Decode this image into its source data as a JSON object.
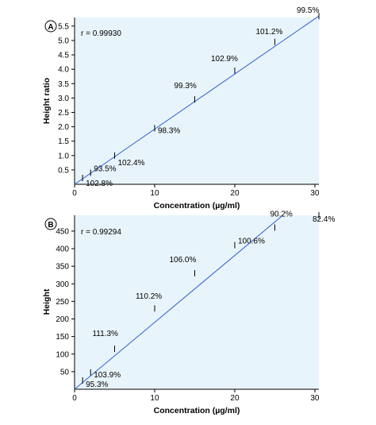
{
  "chart_data": [
    {
      "type": "scatter",
      "panel_label": "A",
      "annotation": "r = 0.99930",
      "xlabel": "Concentration (µg/ml)",
      "ylabel": "Height ratio",
      "xlim": [
        0,
        30.5
      ],
      "ylim": [
        0,
        5.8
      ],
      "xticks": [
        0,
        10,
        20,
        30
      ],
      "yticks": [
        0.5,
        1.0,
        1.5,
        2.0,
        2.5,
        3.0,
        3.5,
        4.0,
        4.5,
        5.0,
        5.5
      ],
      "ytick_labels": [
        "0.5",
        "1.0",
        "1.5",
        "2.0",
        "2.5",
        "3.0",
        "3.5",
        "4.0",
        "4.5",
        "5.0",
        "5.5"
      ],
      "fit_line": {
        "x": [
          0,
          30.5
        ],
        "y": [
          0,
          5.85
        ]
      },
      "x": [
        1.0,
        2.0,
        5.0,
        10.0,
        15.0,
        20.0,
        25.0,
        30.5
      ],
      "y": [
        0.22,
        0.4,
        1.0,
        1.95,
        2.95,
        3.95,
        4.95,
        5.85
      ],
      "point_labels": [
        "102.8%",
        "93.5%",
        "102.4%",
        "98.3%",
        "99.3%",
        "102.9%",
        "101.2%",
        "99.5%"
      ],
      "grid": false
    },
    {
      "type": "scatter",
      "panel_label": "B",
      "annotation": "r = 0.99294",
      "xlabel": "Concentration (µg/ml)",
      "ylabel": "Height",
      "xlim": [
        0,
        30.5
      ],
      "ylim": [
        0,
        495
      ],
      "xticks": [
        0,
        10,
        20,
        30
      ],
      "yticks": [
        50,
        100,
        150,
        200,
        250,
        300,
        350,
        400,
        450
      ],
      "ytick_labels": [
        "50",
        "100",
        "150",
        "200",
        "250",
        "300",
        "350",
        "400",
        "450"
      ],
      "fit_line": {
        "x": [
          0,
          26.0
        ],
        "y": [
          0,
          495
        ]
      },
      "x": [
        1.0,
        2.0,
        5.0,
        10.0,
        15.0,
        20.0,
        25.0,
        30.5
      ],
      "y": [
        25,
        48,
        115,
        230,
        330,
        410,
        460,
        495
      ],
      "point_labels": [
        "95.3%",
        "103.9%",
        "111.3%",
        "110.2%",
        "106.0%",
        "100.6%",
        "90.2%",
        "82.4%"
      ],
      "grid": false
    }
  ]
}
